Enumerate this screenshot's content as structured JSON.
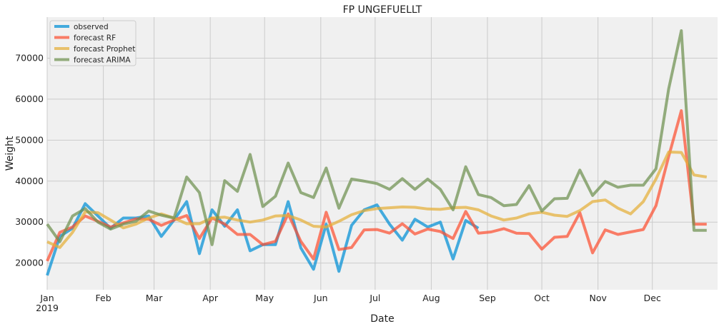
{
  "chart_data": {
    "type": "line",
    "title": "FP UNGEFUELLT",
    "xlabel": "Date",
    "ylabel": "Weight",
    "xlim": [
      "2019-01-01",
      "2020-01-06"
    ],
    "ylim": [
      13500,
      80000
    ],
    "grid": true,
    "legend_position": "top-left",
    "x_ticks": [
      {
        "date": "2019-01-01",
        "label": "Jan",
        "sublabel": "2019"
      },
      {
        "date": "2019-02-01",
        "label": "Feb"
      },
      {
        "date": "2019-03-01",
        "label": "Mar"
      },
      {
        "date": "2019-04-01",
        "label": "Apr"
      },
      {
        "date": "2019-05-01",
        "label": "May"
      },
      {
        "date": "2019-06-01",
        "label": "Jun"
      },
      {
        "date": "2019-07-01",
        "label": "Jul"
      },
      {
        "date": "2019-08-01",
        "label": "Aug"
      },
      {
        "date": "2019-09-01",
        "label": "Sep"
      },
      {
        "date": "2019-10-01",
        "label": "Oct"
      },
      {
        "date": "2019-11-01",
        "label": "Nov"
      },
      {
        "date": "2019-12-01",
        "label": "Dec"
      }
    ],
    "y_ticks": [
      20000,
      30000,
      40000,
      50000,
      60000,
      70000
    ],
    "y_tick_labels": [
      "20000",
      "30000",
      "40000",
      "50000",
      "60000",
      "70000"
    ],
    "series": [
      {
        "name": "observed",
        "color": "#008fd5",
        "x": [
          "2019-01-01",
          "2019-01-08",
          "2019-01-15",
          "2019-01-22",
          "2019-01-29",
          "2019-02-05",
          "2019-02-12",
          "2019-02-19",
          "2019-02-26",
          "2019-03-05",
          "2019-03-12",
          "2019-03-19",
          "2019-03-26",
          "2019-04-02",
          "2019-04-09",
          "2019-04-16",
          "2019-04-23",
          "2019-04-30",
          "2019-05-07",
          "2019-05-14",
          "2019-05-21",
          "2019-05-28",
          "2019-06-04",
          "2019-06-11",
          "2019-06-18",
          "2019-06-25",
          "2019-07-02",
          "2019-07-09",
          "2019-07-16",
          "2019-07-23",
          "2019-07-30",
          "2019-08-06",
          "2019-08-13",
          "2019-08-20",
          "2019-08-27"
        ],
        "values": [
          17000,
          26500,
          28500,
          34500,
          31500,
          28500,
          31000,
          31000,
          31500,
          26500,
          30500,
          35000,
          22300,
          33000,
          29000,
          33000,
          23000,
          24500,
          24500,
          35000,
          23700,
          18500,
          29500,
          18000,
          29200,
          33000,
          34200,
          29500,
          25600,
          30700,
          28800,
          30000,
          21000,
          30400,
          28500
        ]
      },
      {
        "name": "forecast RF",
        "color": "#fc4f30",
        "x": [
          "2019-01-01",
          "2019-01-08",
          "2019-01-15",
          "2019-01-22",
          "2019-01-29",
          "2019-02-05",
          "2019-02-12",
          "2019-02-19",
          "2019-02-26",
          "2019-03-05",
          "2019-03-12",
          "2019-03-19",
          "2019-03-26",
          "2019-04-02",
          "2019-04-09",
          "2019-04-16",
          "2019-04-23",
          "2019-04-30",
          "2019-05-07",
          "2019-05-14",
          "2019-05-21",
          "2019-05-28",
          "2019-06-04",
          "2019-06-11",
          "2019-06-18",
          "2019-06-25",
          "2019-07-02",
          "2019-07-09",
          "2019-07-16",
          "2019-07-23",
          "2019-07-30",
          "2019-08-06",
          "2019-08-13",
          "2019-08-20",
          "2019-08-27",
          "2019-09-03",
          "2019-09-10",
          "2019-09-17",
          "2019-09-24",
          "2019-10-01",
          "2019-10-08",
          "2019-10-15",
          "2019-10-22",
          "2019-10-29",
          "2019-11-05",
          "2019-11-12",
          "2019-11-19",
          "2019-11-26",
          "2019-12-03",
          "2019-12-10",
          "2019-12-17",
          "2019-12-24",
          "2019-12-31"
        ],
        "values": [
          20500,
          27500,
          28800,
          31500,
          30200,
          28800,
          29800,
          30800,
          30700,
          29200,
          30500,
          31600,
          26000,
          31000,
          29500,
          27000,
          27000,
          24500,
          25300,
          32000,
          25300,
          21000,
          32400,
          23300,
          23800,
          28100,
          28200,
          27300,
          29600,
          27100,
          28300,
          27700,
          26000,
          32600,
          27300,
          27600,
          28400,
          27300,
          27200,
          23400,
          26300,
          26500,
          32300,
          22500,
          28100,
          27000,
          27600,
          28200,
          34000,
          46000,
          57200,
          29500,
          29500
        ]
      },
      {
        "name": "forecast Prophet",
        "color": "#e5ae38",
        "x": [
          "2019-01-01",
          "2019-01-08",
          "2019-01-15",
          "2019-01-22",
          "2019-01-29",
          "2019-02-05",
          "2019-02-12",
          "2019-02-19",
          "2019-02-26",
          "2019-03-05",
          "2019-03-12",
          "2019-03-19",
          "2019-03-26",
          "2019-04-02",
          "2019-04-09",
          "2019-04-16",
          "2019-04-23",
          "2019-04-30",
          "2019-05-07",
          "2019-05-14",
          "2019-05-21",
          "2019-05-28",
          "2019-06-04",
          "2019-06-11",
          "2019-06-18",
          "2019-06-25",
          "2019-07-02",
          "2019-07-09",
          "2019-07-16",
          "2019-07-23",
          "2019-07-30",
          "2019-08-06",
          "2019-08-13",
          "2019-08-20",
          "2019-08-27",
          "2019-09-03",
          "2019-09-10",
          "2019-09-17",
          "2019-09-24",
          "2019-10-01",
          "2019-10-08",
          "2019-10-15",
          "2019-10-22",
          "2019-10-29",
          "2019-11-05",
          "2019-11-12",
          "2019-11-19",
          "2019-11-26",
          "2019-12-03",
          "2019-12-10",
          "2019-12-17",
          "2019-12-24",
          "2019-12-31"
        ],
        "values": [
          25200,
          23800,
          27500,
          32500,
          32300,
          30500,
          28600,
          29500,
          31000,
          32000,
          31000,
          29600,
          29600,
          31000,
          31200,
          30500,
          30000,
          30500,
          31500,
          31600,
          30500,
          29000,
          28800,
          30200,
          31800,
          32800,
          33300,
          33500,
          33700,
          33600,
          33200,
          33100,
          33500,
          33600,
          33000,
          31500,
          30500,
          31000,
          32000,
          32400,
          31700,
          31400,
          32800,
          35000,
          35400,
          33400,
          32000,
          35000,
          40500,
          47100,
          47000,
          41500,
          41000
        ]
      },
      {
        "name": "forecast ARIMA",
        "color": "#6d904f",
        "x": [
          "2019-01-01",
          "2019-01-08",
          "2019-01-15",
          "2019-01-22",
          "2019-01-29",
          "2019-02-05",
          "2019-02-12",
          "2019-02-19",
          "2019-02-26",
          "2019-03-05",
          "2019-03-12",
          "2019-03-19",
          "2019-03-26",
          "2019-04-02",
          "2019-04-09",
          "2019-04-16",
          "2019-04-23",
          "2019-04-30",
          "2019-05-07",
          "2019-05-14",
          "2019-05-21",
          "2019-05-28",
          "2019-06-04",
          "2019-06-11",
          "2019-06-18",
          "2019-06-25",
          "2019-07-02",
          "2019-07-09",
          "2019-07-16",
          "2019-07-23",
          "2019-07-30",
          "2019-08-06",
          "2019-08-13",
          "2019-08-20",
          "2019-08-27",
          "2019-09-03",
          "2019-09-10",
          "2019-09-17",
          "2019-09-24",
          "2019-10-01",
          "2019-10-08",
          "2019-10-15",
          "2019-10-22",
          "2019-10-29",
          "2019-11-05",
          "2019-11-12",
          "2019-11-19",
          "2019-11-26",
          "2019-12-03",
          "2019-12-10",
          "2019-12-17",
          "2019-12-24",
          "2019-12-31"
        ],
        "values": [
          29500,
          25200,
          31500,
          33300,
          30000,
          28300,
          29500,
          30200,
          32700,
          31700,
          31000,
          41000,
          37200,
          24500,
          40100,
          37500,
          46500,
          33800,
          36300,
          44400,
          37200,
          36000,
          43200,
          33400,
          40500,
          40000,
          39400,
          38000,
          40600,
          38000,
          40500,
          38000,
          33000,
          43500,
          36700,
          36000,
          34000,
          34300,
          38900,
          32700,
          35700,
          35800,
          42700,
          36500,
          39900,
          38500,
          39000,
          39000,
          43000,
          62500,
          76700,
          28000,
          28000
        ]
      }
    ]
  }
}
